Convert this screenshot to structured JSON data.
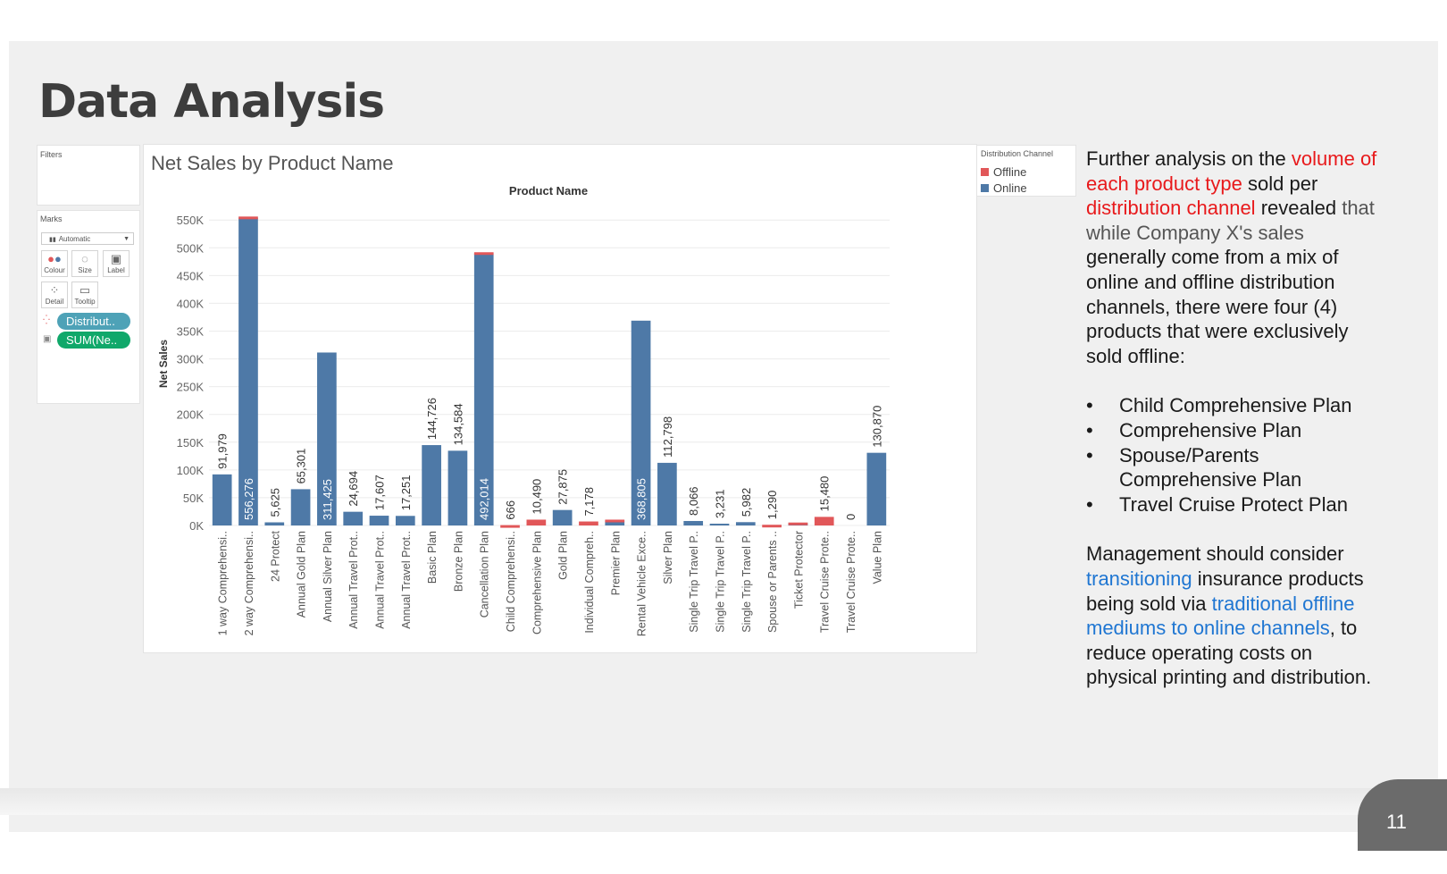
{
  "slide": {
    "title": "Data Analysis",
    "page_number": "11"
  },
  "tableau": {
    "filters_label": "Filters",
    "marks_label": "Marks",
    "mark_type": "Automatic",
    "buttons": {
      "colour": "Colour",
      "size": "Size",
      "label": "Label",
      "detail": "Detail",
      "tooltip": "Tooltip"
    },
    "pills": {
      "color_pill": "Distribut..",
      "label_pill": "SUM(Ne.."
    },
    "colors": {
      "color_pill": "#4ea2b7",
      "label_pill": "#10a86a"
    }
  },
  "side_text": {
    "p1_a": "Further analysis on the ",
    "p1_b": "volume of each product type",
    "p1_c": " sold per ",
    "p1_d": "distribution channel",
    "p1_e": " revealed ",
    "p1_f": "that while Company X's sales",
    "p1_g": " generally come from a mix of online and offline distribution channels, there were four (4) products that were exclusively sold offline:",
    "bullets": [
      "Child Comprehensive Plan",
      "Comprehensive Plan",
      "Spouse/Parents Comprehensive Plan",
      "Travel Cruise Protect Plan"
    ],
    "p2_a": "Management should consider ",
    "p2_b": "transitioning",
    "p2_c": " insurance products being sold via ",
    "p2_d": "traditional offline mediums to online channels",
    "p2_e": ", to reduce operating costs on physical printing and distribution."
  },
  "chart_data": {
    "type": "bar",
    "stacked": true,
    "title": "Net Sales by Product Name",
    "xlabel": "Product Name",
    "ylabel": "Net Sales",
    "ylim": [
      0,
      560000
    ],
    "yticks": [
      0,
      50000,
      100000,
      150000,
      200000,
      250000,
      300000,
      350000,
      400000,
      450000,
      500000,
      550000
    ],
    "ytick_labels": [
      "0K",
      "50K",
      "100K",
      "150K",
      "200K",
      "250K",
      "300K",
      "350K",
      "400K",
      "450K",
      "500K",
      "550K"
    ],
    "legend_title": "Distribution Channel",
    "legend_position": "top-right",
    "categories": [
      "1 way Comprehensi..",
      "2 way Comprehensi..",
      "24 Protect",
      "Annual Gold Plan",
      "Annual Silver Plan",
      "Annual Travel Prot..",
      "Annual Travel Prot..",
      "Annual Travel Prot..",
      "Basic Plan",
      "Bronze Plan",
      "Cancellation Plan",
      "Child Comprehensi..",
      "Comprehensive Plan",
      "Gold Plan",
      "Individual Compreh..",
      "Premier Plan",
      "Rental Vehicle Exce..",
      "Silver Plan",
      "Single Trip Travel P..",
      "Single Trip Travel P..",
      "Single Trip Travel P..",
      "Spouse or Parents ..",
      "Ticket Protector",
      "Travel Cruise Prote..",
      "Travel Cruise Prote..",
      "Value Plan"
    ],
    "labels": [
      "91,979",
      "556,276",
      "5,625",
      "65,301",
      "311,425",
      "24,694",
      "17,607",
      "17,251",
      "144,726",
      "134,584",
      "492,014",
      "666",
      "10,490",
      "27,875",
      "7,178",
      "",
      "368,805",
      "112,798",
      "8,066",
      "3,231",
      "5,982",
      "1,290",
      "",
      "15,480",
      "0",
      "130,870"
    ],
    "series": [
      {
        "name": "Online",
        "color": "#4e79a7",
        "values": [
          91979,
          554000,
          5625,
          65301,
          311425,
          24694,
          17607,
          17251,
          144726,
          134584,
          490000,
          0,
          0,
          27875,
          0,
          9000,
          368805,
          112798,
          8066,
          3231,
          5982,
          0,
          4500,
          0,
          0,
          130870
        ]
      },
      {
        "name": "Offline",
        "color": "#e15759",
        "values": [
          0,
          2276,
          0,
          0,
          0,
          0,
          0,
          0,
          0,
          0,
          2014,
          666,
          10490,
          0,
          7178,
          1500,
          0,
          0,
          0,
          0,
          0,
          1290,
          800,
          15480,
          0,
          0
        ]
      }
    ]
  }
}
